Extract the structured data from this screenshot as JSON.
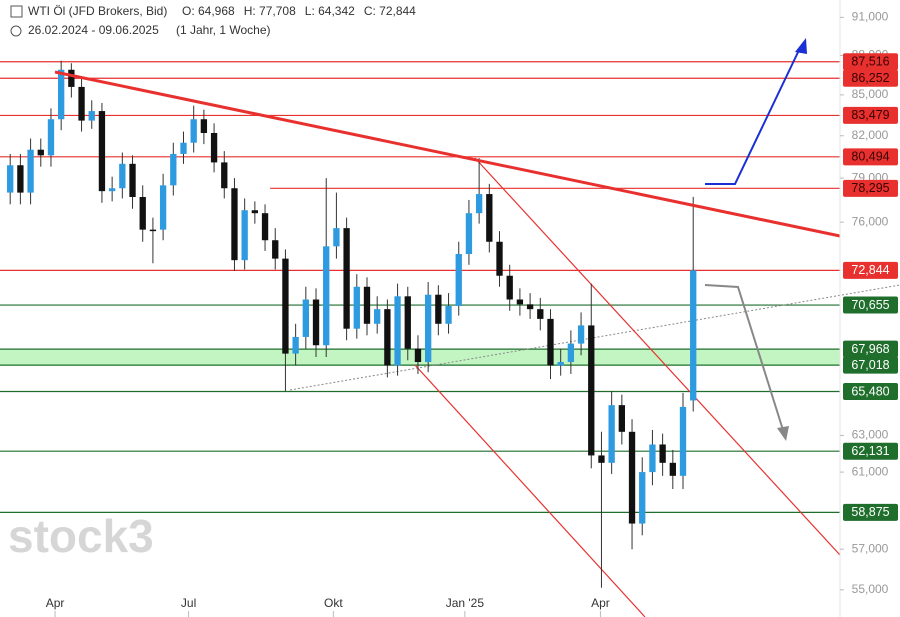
{
  "chart_data": {
    "type": "candlestick",
    "title": "WTI Öl (JFD Brokers, Bid)",
    "stats": [
      "O: 64,968",
      "H: 77,708",
      "L: 64,342",
      "C: 72,844"
    ],
    "subtitle": "26.02.2024 - 09.06.2025",
    "period": "(1 Jahr, 1 Woche)",
    "watermark": "stock3",
    "log_scale": true,
    "up_color": "#2e9be0",
    "down_color": "#111111",
    "open": [
      78.0,
      79.9,
      78.0,
      81.0,
      80.6,
      83.2,
      86.9,
      85.6,
      83.1,
      83.8,
      78.1,
      78.3,
      80.0,
      77.7,
      75.5,
      75.5,
      78.5,
      80.7,
      81.5,
      83.2,
      82.2,
      80.1,
      78.3,
      73.5,
      76.8,
      76.6,
      74.8,
      73.6,
      67.7,
      68.7,
      71.0,
      68.2,
      74.4,
      75.6,
      69.2,
      71.8,
      69.5,
      70.4,
      67.0,
      71.2,
      68.0,
      67.2,
      71.3,
      69.5,
      70.6,
      73.9,
      76.6,
      77.9,
      74.7,
      72.5,
      71.0,
      70.7,
      70.4,
      69.8,
      67.0,
      67.2,
      68.3,
      69.4,
      61.9,
      61.5,
      64.7,
      63.2,
      58.3,
      61.0,
      62.5,
      61.5,
      60.8,
      64.968
    ],
    "high": [
      80.7,
      80.7,
      81.8,
      81.8,
      84.0,
      87.6,
      87.4,
      86.4,
      84.6,
      84.4,
      79.1,
      80.8,
      80.6,
      78.5,
      76.3,
      79.3,
      81.5,
      82.3,
      84.2,
      83.9,
      82.9,
      80.9,
      79.0,
      77.6,
      77.4,
      77.2,
      75.6,
      74.2,
      69.5,
      71.8,
      71.7,
      79.0,
      78.0,
      76.3,
      72.6,
      72.4,
      71.2,
      71.0,
      72.0,
      71.8,
      68.8,
      72.1,
      71.9,
      71.4,
      74.7,
      77.5,
      80.4,
      78.6,
      75.4,
      73.2,
      71.7,
      71.4,
      71.1,
      70.4,
      68.0,
      69.1,
      70.2,
      72.0,
      63.2,
      65.5,
      65.3,
      63.9,
      61.8,
      63.3,
      63.1,
      62.2,
      65.4,
      77.708
    ],
    "low": [
      77.2,
      77.2,
      77.2,
      79.8,
      79.8,
      82.4,
      84.8,
      82.3,
      82.5,
      77.3,
      77.4,
      77.6,
      76.9,
      74.7,
      73.3,
      74.8,
      77.8,
      80.0,
      80.8,
      81.4,
      79.4,
      77.6,
      72.8,
      72.9,
      75.9,
      74.1,
      72.9,
      65.5,
      67.0,
      68.0,
      67.5,
      67.5,
      73.6,
      68.5,
      68.6,
      68.8,
      68.9,
      66.3,
      66.4,
      67.3,
      66.5,
      66.6,
      68.8,
      68.9,
      70.0,
      73.2,
      75.9,
      74.0,
      71.8,
      70.3,
      70.0,
      69.8,
      69.1,
      66.2,
      66.4,
      66.5,
      67.6,
      61.2,
      55.1,
      60.9,
      62.5,
      57.0,
      57.7,
      60.3,
      60.8,
      60.1,
      60.1,
      64.342
    ],
    "close": [
      79.9,
      78.0,
      81.0,
      80.6,
      83.2,
      86.9,
      85.6,
      83.1,
      83.8,
      78.1,
      78.3,
      80.0,
      77.7,
      75.5,
      75.5,
      78.5,
      80.7,
      81.5,
      83.2,
      82.2,
      80.1,
      78.3,
      73.5,
      76.8,
      76.6,
      74.8,
      73.6,
      67.7,
      68.7,
      71.0,
      68.2,
      74.4,
      75.6,
      69.2,
      71.8,
      69.5,
      70.4,
      67.0,
      71.2,
      68.0,
      67.2,
      71.3,
      69.5,
      70.6,
      73.9,
      76.6,
      77.9,
      74.7,
      72.5,
      71.0,
      70.7,
      70.4,
      69.8,
      67.0,
      67.2,
      68.3,
      69.4,
      61.9,
      61.5,
      64.7,
      63.2,
      58.3,
      61.0,
      62.5,
      61.5,
      60.8,
      64.6,
      72.844
    ],
    "xlim": [
      -1,
      81.4
    ],
    "xticks": [
      {
        "value": 4.4,
        "label": "Apr"
      },
      {
        "value": 17.5,
        "label": "Jul"
      },
      {
        "value": 31.7,
        "label": "Okt"
      },
      {
        "value": 44.6,
        "label": "Jan '25"
      },
      {
        "value": 57.9,
        "label": "Apr"
      }
    ],
    "ylim": [
      53.7,
      92.4
    ],
    "yticks": [
      {
        "value": 91,
        "label": "91,000"
      },
      {
        "value": 88,
        "label": "88,000"
      },
      {
        "value": 85,
        "label": "85,000"
      },
      {
        "value": 82,
        "label": "82,000"
      },
      {
        "value": 79,
        "label": "79,000"
      },
      {
        "value": 76,
        "label": "76,000"
      },
      {
        "value": 63,
        "label": "63,000"
      },
      {
        "value": 61,
        "label": "61,000"
      },
      {
        "value": 57,
        "label": "57,000"
      },
      {
        "value": 55,
        "label": "55,000"
      }
    ],
    "zones": [
      {
        "from": 67.018,
        "to": 67.968,
        "color": "#b8f3b8"
      }
    ],
    "levels": [
      {
        "value": 87.516,
        "label": "87,516",
        "color": "#e8312f",
        "text_color": "#3a0000"
      },
      {
        "value": 86.252,
        "label": "86,252",
        "color": "#e8312f",
        "text_color": "#3a0000"
      },
      {
        "value": 83.479,
        "label": "83,479",
        "color": "#e8312f",
        "text_color": "#3a0000"
      },
      {
        "value": 80.494,
        "label": "80,494",
        "color": "#e8312f",
        "text_color": "#3a0000"
      },
      {
        "value": 78.295,
        "label": "78,295",
        "color": "#e8312f",
        "text_color": "#3a0000",
        "start": 25.5
      },
      {
        "value": 72.844,
        "label": "72,844",
        "color": "#e8312f",
        "text_color": "#ffffff"
      },
      {
        "value": 70.655,
        "label": "70,655",
        "color": "#1f6e2c",
        "text_color": "#ffffff"
      },
      {
        "value": 67.968,
        "label": "67,968",
        "color": "#1f6e2c",
        "text_color": "#ffffff"
      },
      {
        "value": 67.018,
        "label": "67,018",
        "color": "#1f6e2c",
        "text_color": "#ffffff"
      },
      {
        "value": 65.48,
        "label": "65,480",
        "color": "#1f6e2c",
        "text_color": "#ffffff"
      },
      {
        "value": 62.131,
        "label": "62,131",
        "color": "#1f6e2c",
        "text_color": "#ffffff"
      },
      {
        "value": 58.875,
        "label": "58,875",
        "color": "#1f6e2c",
        "text_color": "#ffffff"
      }
    ]
  }
}
